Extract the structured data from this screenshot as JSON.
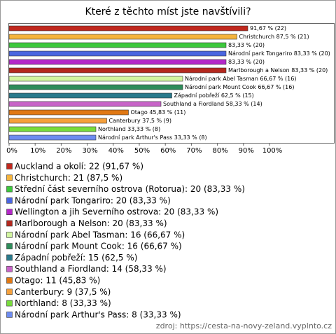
{
  "chart_data": {
    "type": "bar",
    "orientation": "horizontal",
    "title": "Které z těchto míst jste navštívili?",
    "categories": [
      "Auckland a okolí",
      "Christchurch",
      "Střední část severního ostrova (Rotorua)",
      "Národní park Tongariro",
      "Wellington a jih Severního ostrova",
      "Marlborough a Nelson",
      "Národní park Abel Tasman",
      "Národní park Mount Cook",
      "Západní pobřeží",
      "Southland a Fiordland",
      "Otago",
      "Canterbury",
      "Northland",
      "Národní park Arthur's Pass"
    ],
    "values": [
      91.67,
      87.5,
      83.33,
      83.33,
      83.33,
      83.33,
      66.67,
      66.67,
      62.5,
      58.33,
      45.83,
      37.5,
      33.33,
      33.33
    ],
    "value_labels": [
      "91,67 % (22)",
      "Christchurch 87,5 % (21)",
      "83,33 % (20)",
      "Národní park Tongariro 83,33 % (20)",
      "83,33 % (20)",
      "Marlborough a Nelson 83,33 % (20)",
      "Národní park Abel Tasman 66,67 % (16)",
      "Národní park Mount Cook 66,67 % (16)",
      "Západní pobřeží 62,5 % (15)",
      "Southland a Fiordland 58,33 % (14)",
      "Otago 45,83 % (11)",
      "Canterbury 37,5 % (9)",
      "Northland 33,33 % (8)",
      "Národní park Arthur's Pass 33,33 % (8)"
    ],
    "colors": [
      "#c0281e",
      "#f5b43c",
      "#3cc83c",
      "#4a66e0",
      "#b428c8",
      "#b4281e",
      "#d2f5a0",
      "#2e8c5a",
      "#2a7a8c",
      "#c864c8",
      "#e07814",
      "#f5a03c",
      "#78dc3c",
      "#6e8cf0"
    ],
    "legend_labels": [
      "Auckland a okolí: 22 (91,67 %)",
      "Christchurch: 21 (87,5 %)",
      "Střední část severního ostrova (Rotorua): 20 (83,33 %)",
      "Národní park Tongariro: 20 (83,33 %)",
      "Wellington a jih Severního ostrova: 20 (83,33 %)",
      "Marlborough a Nelson: 20 (83,33 %)",
      "Národní park Abel Tasman: 16 (66,67 %)",
      "Národní park Mount Cook: 16 (66,67 %)",
      "Západní pobřeží: 15 (62,5 %)",
      "Southland a Fiordland: 14 (58,33 %)",
      "Otago: 11 (45,83 %)",
      "Canterbury: 9 (37,5 %)",
      "Northland: 8 (33,33 %)",
      "Národní park Arthur's Pass: 8 (33,33 %)"
    ],
    "xlim": [
      0,
      125
    ],
    "xticks": [
      {
        "value": 0,
        "label": "0%"
      },
      {
        "value": 10,
        "label": "10%"
      },
      {
        "value": 20,
        "label": "20%"
      },
      {
        "value": 30,
        "label": "30%"
      },
      {
        "value": 40,
        "label": "40%"
      },
      {
        "value": 50,
        "label": "50%"
      },
      {
        "value": 60,
        "label": "60%"
      },
      {
        "value": 70,
        "label": "70%"
      },
      {
        "value": 80,
        "label": "80%"
      },
      {
        "value": 90,
        "label": "90%"
      },
      {
        "value": 100,
        "label": "100%"
      }
    ],
    "source": "zdroj: https://cesta-na-novy-zeland.vyplnto.cz"
  }
}
